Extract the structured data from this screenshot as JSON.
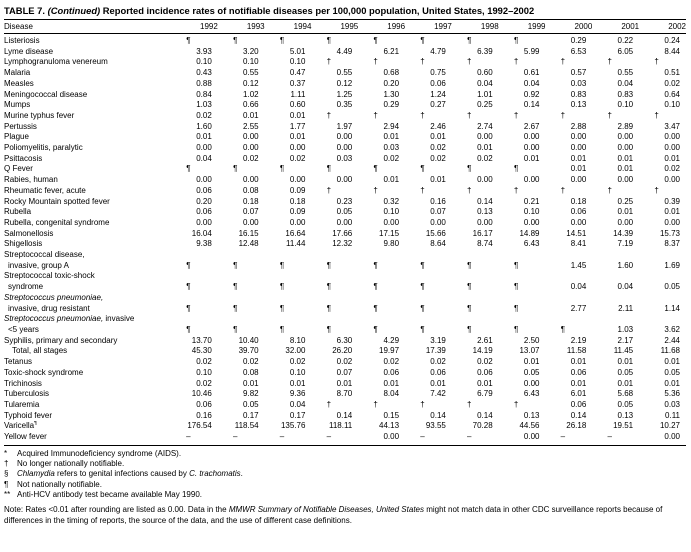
{
  "title": {
    "segments": [
      {
        "text": "TABLE 7. "
      },
      {
        "text": "(Continued)",
        "italic": true
      },
      {
        "text": " Reported incidence rates of notifiable diseases per 100,000 population, United States, 1992–2002"
      }
    ]
  },
  "table": {
    "columns": [
      "Disease",
      "1992",
      "1993",
      "1994",
      "1995",
      "1996",
      "1997",
      "1998",
      "1999",
      "2000",
      "2001",
      "2002"
    ],
    "rows": [
      {
        "label": [
          [
            {
              "text": "Listeriosis"
            }
          ]
        ],
        "values": [
          "¶",
          "¶",
          "¶",
          "¶",
          "¶",
          "¶",
          "¶",
          "¶",
          "0.29",
          "0.22",
          "0.24"
        ]
      },
      {
        "label": [
          [
            {
              "text": "Lyme disease"
            }
          ]
        ],
        "values": [
          "3.93",
          "3.20",
          "5.01",
          "4.49",
          "6.21",
          "4.79",
          "6.39",
          "5.99",
          "6.53",
          "6.05",
          "8.44"
        ]
      },
      {
        "label": [
          [
            {
              "text": "Lymphogranuloma venereum"
            }
          ]
        ],
        "values": [
          "0.10",
          "0.10",
          "0.10",
          "†",
          "†",
          "†",
          "†",
          "†",
          "†",
          "†",
          "†"
        ]
      },
      {
        "label": [
          [
            {
              "text": "Malaria"
            }
          ]
        ],
        "values": [
          "0.43",
          "0.55",
          "0.47",
          "0.55",
          "0.68",
          "0.75",
          "0.60",
          "0.61",
          "0.57",
          "0.55",
          "0.51"
        ]
      },
      {
        "label": [
          [
            {
              "text": "Measles"
            }
          ]
        ],
        "values": [
          "0.88",
          "0.12",
          "0.37",
          "0.12",
          "0.20",
          "0.06",
          "0.04",
          "0.04",
          "0.03",
          "0.04",
          "0.02"
        ]
      },
      {
        "label": [
          [
            {
              "text": "Meningococcal disease"
            }
          ]
        ],
        "values": [
          "0.84",
          "1.02",
          "1.11",
          "1.25",
          "1.30",
          "1.24",
          "1.01",
          "0.92",
          "0.83",
          "0.83",
          "0.64"
        ]
      },
      {
        "label": [
          [
            {
              "text": "Mumps"
            }
          ]
        ],
        "values": [
          "1.03",
          "0.66",
          "0.60",
          "0.35",
          "0.29",
          "0.27",
          "0.25",
          "0.14",
          "0.13",
          "0.10",
          "0.10"
        ]
      },
      {
        "label": [
          [
            {
              "text": "Murine typhus fever"
            }
          ]
        ],
        "values": [
          "0.02",
          "0.01",
          "0.01",
          "†",
          "†",
          "†",
          "†",
          "†",
          "†",
          "†",
          "†"
        ]
      },
      {
        "label": [
          [
            {
              "text": "Pertussis"
            }
          ]
        ],
        "values": [
          "1.60",
          "2.55",
          "1.77",
          "1.97",
          "2.94",
          "2.46",
          "2.74",
          "2.67",
          "2.88",
          "2.89",
          "3.47"
        ]
      },
      {
        "label": [
          [
            {
              "text": "Plague"
            }
          ]
        ],
        "values": [
          "0.01",
          "0.00",
          "0.01",
          "0.00",
          "0.01",
          "0.01",
          "0.00",
          "0.00",
          "0.00",
          "0.00",
          "0.00"
        ]
      },
      {
        "label": [
          [
            {
              "text": "Poliomyelitis, paralytic"
            }
          ]
        ],
        "values": [
          "0.00",
          "0.00",
          "0.00",
          "0.00",
          "0.03",
          "0.02",
          "0.01",
          "0.00",
          "0.00",
          "0.00",
          "0.00"
        ]
      },
      {
        "label": [
          [
            {
              "text": "Psittacosis"
            }
          ]
        ],
        "values": [
          "0.04",
          "0.02",
          "0.02",
          "0.03",
          "0.02",
          "0.02",
          "0.02",
          "0.01",
          "0.01",
          "0.01",
          "0.01"
        ]
      },
      {
        "label": [
          [
            {
              "text": "Q Fever"
            }
          ]
        ],
        "values": [
          "¶",
          "¶",
          "¶",
          "¶",
          "¶",
          "¶",
          "¶",
          "¶",
          "0.01",
          "0.01",
          "0.02"
        ]
      },
      {
        "label": [
          [
            {
              "text": "Rabies, human"
            }
          ]
        ],
        "values": [
          "0.00",
          "0.00",
          "0.00",
          "0.00",
          "0.01",
          "0.01",
          "0.00",
          "0.00",
          "0.00",
          "0.00",
          "0.00"
        ]
      },
      {
        "label": [
          [
            {
              "text": "Rheumatic fever, acute"
            }
          ]
        ],
        "values": [
          "0.06",
          "0.08",
          "0.09",
          "†",
          "†",
          "†",
          "†",
          "†",
          "†",
          "†",
          "†"
        ]
      },
      {
        "label": [
          [
            {
              "text": "Rocky Mountain spotted fever"
            }
          ]
        ],
        "values": [
          "0.20",
          "0.18",
          "0.18",
          "0.23",
          "0.32",
          "0.16",
          "0.14",
          "0.21",
          "0.18",
          "0.25",
          "0.39"
        ]
      },
      {
        "label": [
          [
            {
              "text": "Rubella"
            }
          ]
        ],
        "values": [
          "0.06",
          "0.07",
          "0.09",
          "0.05",
          "0.10",
          "0.07",
          "0.13",
          "0.10",
          "0.06",
          "0.01",
          "0.01"
        ]
      },
      {
        "label": [
          [
            {
              "text": "Rubella, congenital syndrome"
            }
          ]
        ],
        "values": [
          "0.00",
          "0.00",
          "0.00",
          "0.00",
          "0.00",
          "0.00",
          "0.00",
          "0.00",
          "0.00",
          "0.00",
          "0.00"
        ]
      },
      {
        "label": [
          [
            {
              "text": "Salmonellosis"
            }
          ]
        ],
        "values": [
          "16.04",
          "16.15",
          "16.64",
          "17.66",
          "17.15",
          "15.66",
          "16.17",
          "14.89",
          "14.51",
          "14.39",
          "15.73"
        ]
      },
      {
        "label": [
          [
            {
              "text": "Shigellosis"
            }
          ]
        ],
        "values": [
          "9.38",
          "12.48",
          "11.44",
          "12.32",
          "9.80",
          "8.64",
          "8.74",
          "6.43",
          "8.41",
          "7.19",
          "8.37"
        ]
      },
      {
        "label": [
          [
            {
              "text": "Streptococcal disease,"
            }
          ],
          [
            {
              "text": "invasive, group A"
            }
          ]
        ],
        "values": [
          "¶",
          "¶",
          "¶",
          "¶",
          "¶",
          "¶",
          "¶",
          "¶",
          "1.45",
          "1.60",
          "1.69"
        ]
      },
      {
        "label": [
          [
            {
              "text": "Streptococcal toxic-shock"
            }
          ],
          [
            {
              "text": "syndrome"
            }
          ]
        ],
        "values": [
          "¶",
          "¶",
          "¶",
          "¶",
          "¶",
          "¶",
          "¶",
          "¶",
          "0.04",
          "0.04",
          "0.05"
        ]
      },
      {
        "label": [
          [
            {
              "text": "Streptococcus pneumoniae,",
              "italic": true
            }
          ],
          [
            {
              "text": "invasive, drug resistant"
            }
          ]
        ],
        "values": [
          "¶",
          "¶",
          "¶",
          "¶",
          "¶",
          "¶",
          "¶",
          "¶",
          "2.77",
          "2.11",
          "1.14"
        ]
      },
      {
        "label": [
          [
            {
              "text": "Streptococcus pneumoniae,",
              "italic": true
            },
            {
              "text": " invasive"
            }
          ],
          [
            {
              "text": "<5 years"
            }
          ]
        ],
        "values": [
          "¶",
          "¶",
          "¶",
          "¶",
          "¶",
          "¶",
          "¶",
          "¶",
          "¶",
          "1.03",
          "3.62"
        ]
      },
      {
        "label": [
          [
            {
              "text": "Syphilis, primary and secondary"
            }
          ]
        ],
        "values": [
          "13.70",
          "10.40",
          "8.10",
          "6.30",
          "4.29",
          "3.19",
          "2.61",
          "2.50",
          "2.19",
          "2.17",
          "2.44"
        ]
      },
      {
        "label": [
          [
            {
              "text": "Total, all stages"
            }
          ]
        ],
        "indent": true,
        "values": [
          "45.30",
          "39.70",
          "32.00",
          "26.20",
          "19.97",
          "17.39",
          "14.19",
          "13.07",
          "11.58",
          "11.45",
          "11.68"
        ]
      },
      {
        "label": [
          [
            {
              "text": "Tetanus"
            }
          ]
        ],
        "values": [
          "0.02",
          "0.02",
          "0.02",
          "0.02",
          "0.02",
          "0.02",
          "0.02",
          "0.01",
          "0.01",
          "0.01",
          "0.01"
        ]
      },
      {
        "label": [
          [
            {
              "text": "Toxic-shock syndrome"
            }
          ]
        ],
        "values": [
          "0.10",
          "0.08",
          "0.10",
          "0.07",
          "0.06",
          "0.06",
          "0.06",
          "0.05",
          "0.06",
          "0.05",
          "0.05"
        ]
      },
      {
        "label": [
          [
            {
              "text": "Trichinosis"
            }
          ]
        ],
        "values": [
          "0.02",
          "0.01",
          "0.01",
          "0.01",
          "0.01",
          "0.01",
          "0.01",
          "0.00",
          "0.01",
          "0.01",
          "0.01"
        ]
      },
      {
        "label": [
          [
            {
              "text": "Tuberculosis"
            }
          ]
        ],
        "values": [
          "10.46",
          "9.82",
          "9.36",
          "8.70",
          "8.04",
          "7.42",
          "6.79",
          "6.43",
          "6.01",
          "5.68",
          "5.36"
        ]
      },
      {
        "label": [
          [
            {
              "text": "Tularemia"
            }
          ]
        ],
        "values": [
          "0.06",
          "0.05",
          "0.04",
          "†",
          "†",
          "†",
          "†",
          "†",
          "0.06",
          "0.05",
          "0.03"
        ]
      },
      {
        "label": [
          [
            {
              "text": "Typhoid fever"
            }
          ]
        ],
        "values": [
          "0.16",
          "0.17",
          "0.17",
          "0.14",
          "0.15",
          "0.14",
          "0.14",
          "0.13",
          "0.14",
          "0.13",
          "0.11"
        ]
      },
      {
        "label": [
          [
            {
              "text": "Varicella"
            },
            {
              "text": "¶",
              "sup": true
            }
          ]
        ],
        "values": [
          "176.54",
          "118.54",
          "135.76",
          "118.11",
          "44.13",
          "93.55",
          "70.28",
          "44.56",
          "26.18",
          "19.51",
          "10.27"
        ]
      },
      {
        "label": [
          [
            {
              "text": "Yellow fever"
            }
          ]
        ],
        "values": [
          "–",
          "–",
          "–",
          "–",
          "0.00",
          "–",
          "–",
          "0.00",
          "–",
          "–",
          "0.00"
        ]
      }
    ]
  },
  "footnotes": [
    {
      "marker": "*",
      "segments": [
        {
          "text": "Acquired Immunodeficiency syndrome (AIDS)."
        }
      ]
    },
    {
      "marker": "†",
      "segments": [
        {
          "text": "No longer nationally notifiable."
        }
      ]
    },
    {
      "marker": "§",
      "segments": [
        {
          "text": "Chlamydia",
          "italic": true
        },
        {
          "text": " refers to genital infections caused by "
        },
        {
          "text": "C. trachomatis",
          "italic": true
        },
        {
          "text": "."
        }
      ]
    },
    {
      "marker": "¶",
      "segments": [
        {
          "text": "Not nationally notifiable."
        }
      ]
    },
    {
      "marker": "**",
      "segments": [
        {
          "text": "Anti-HCV antibody test became available May 1990."
        }
      ]
    }
  ],
  "note": {
    "segments": [
      {
        "text": "Note: Rates <0.01 after rounding are listed as 0.00. Data in the "
      },
      {
        "text": "MMWR Summary of Notifiable Diseases, United States",
        "italic": true
      },
      {
        "text": " might not match data in other CDC surveillance reports because of differences in the timing of reports, the source of the data, and the use of different case definitions."
      }
    ]
  }
}
